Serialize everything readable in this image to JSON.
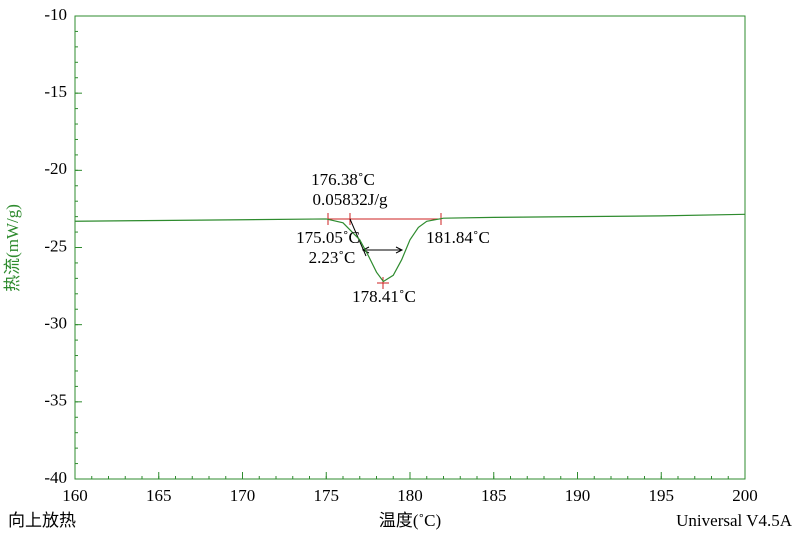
{
  "chart_data": {
    "type": "line",
    "x_label": "温度(˚C)",
    "y_label": "热流(mW/g)",
    "corner_left": "向上放热",
    "corner_right": "Universal V4.5A",
    "x": [
      160,
      165,
      170,
      175,
      176,
      177,
      177.5,
      178,
      178.41,
      179,
      179.5,
      180,
      180.5,
      181,
      182,
      185,
      190,
      195,
      200
    ],
    "series": [
      {
        "color": "#2e8b2e",
        "values": [
          -23.3,
          -23.25,
          -23.2,
          -23.15,
          -23.4,
          -24.5,
          -25.5,
          -26.6,
          -27.2,
          -26.8,
          -25.8,
          -24.5,
          -23.7,
          -23.3,
          -23.1,
          -23.05,
          -23.0,
          -22.95,
          -22.85
        ]
      }
    ],
    "xlim": [
      160,
      200
    ],
    "xticks": [
      160,
      165,
      170,
      175,
      180,
      185,
      190,
      195,
      200
    ],
    "ylim": [
      -40,
      -10
    ],
    "yticks": [
      -10,
      -15,
      -20,
      -25,
      -30,
      -35,
      -40
    ],
    "annotations": [
      "176.38˚C",
      "0.05832J/g",
      "175.05˚C",
      "2.23˚C",
      "178.41˚C",
      "181.84˚C"
    ]
  }
}
